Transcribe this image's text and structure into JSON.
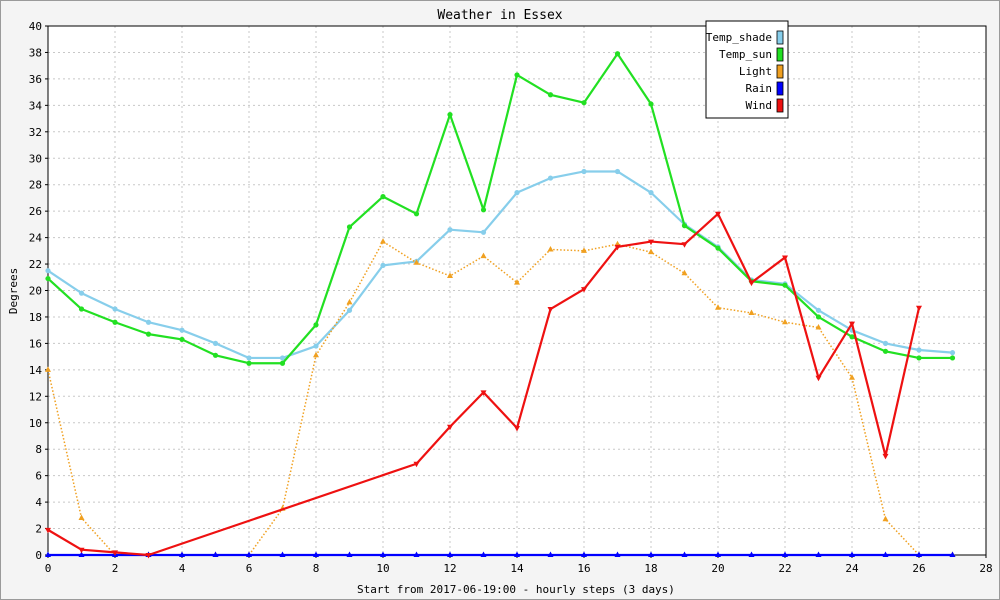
{
  "chart_data": {
    "type": "line",
    "title": "Weather in Essex",
    "xlabel": "Start from 2017-06-19:00 - hourly steps (3 days)",
    "ylabel": "Degrees",
    "xlim": [
      0,
      28
    ],
    "ylim": [
      0,
      40
    ],
    "xticks": [
      "0",
      "2",
      "4",
      "6",
      "8",
      "10",
      "12",
      "14",
      "16",
      "18",
      "20",
      "22",
      "24",
      "26",
      "28"
    ],
    "yticks": [
      "0",
      "2",
      "4",
      "6",
      "8",
      "10",
      "12",
      "14",
      "16",
      "18",
      "20",
      "22",
      "24",
      "26",
      "28",
      "30",
      "32",
      "34",
      "36",
      "38",
      "40"
    ],
    "grid": true,
    "legend_position": "top-right",
    "series": [
      {
        "name": "Temp_shade",
        "color": "#87ceeb",
        "style": "solid",
        "marker": "circle",
        "x": [
          0,
          1,
          2,
          3,
          4,
          5,
          6,
          7,
          8,
          9,
          10,
          11,
          12,
          13,
          14,
          15,
          16,
          17,
          18,
          19,
          20,
          21,
          22,
          23,
          24,
          25,
          26,
          27
        ],
        "values": [
          21.5,
          19.8,
          18.6,
          17.6,
          17.0,
          16.0,
          14.9,
          14.9,
          15.8,
          18.5,
          21.9,
          22.2,
          24.6,
          24.4,
          27.4,
          28.5,
          29.0,
          29.0,
          27.4,
          25.0,
          23.3,
          20.8,
          20.5,
          18.5,
          17.0,
          16.0,
          15.5,
          15.3
        ]
      },
      {
        "name": "Temp_sun",
        "color": "#22e022",
        "style": "solid",
        "marker": "circle",
        "x": [
          0,
          1,
          2,
          3,
          4,
          5,
          6,
          7,
          8,
          9,
          10,
          11,
          12,
          13,
          14,
          15,
          16,
          17,
          18,
          19,
          20,
          21,
          22,
          23,
          24,
          25,
          26,
          27
        ],
        "values": [
          20.9,
          18.6,
          17.6,
          16.7,
          16.3,
          15.1,
          14.5,
          14.5,
          17.4,
          24.8,
          27.1,
          25.8,
          33.3,
          26.1,
          36.3,
          34.8,
          34.2,
          37.9,
          34.1,
          24.9,
          23.2,
          20.7,
          20.4,
          18.0,
          16.5,
          15.4,
          14.9,
          14.9
        ]
      },
      {
        "name": "Light",
        "color": "#f0a020",
        "style": "dotted",
        "marker": "triangle-up",
        "x": [
          0,
          1,
          2,
          3,
          4,
          5,
          6,
          7,
          8,
          9,
          10,
          11,
          12,
          13,
          14,
          15,
          16,
          17,
          18,
          19,
          20,
          21,
          22,
          23,
          24,
          25,
          26,
          27
        ],
        "values": [
          14.0,
          2.8,
          0,
          0,
          0,
          0,
          0,
          3.5,
          15.1,
          19.1,
          23.7,
          22.1,
          21.1,
          22.6,
          20.6,
          23.1,
          23.0,
          23.5,
          22.9,
          21.3,
          18.7,
          18.3,
          17.6,
          17.2,
          13.4,
          2.7,
          0,
          0
        ]
      },
      {
        "name": "Rain",
        "color": "#0000ff",
        "style": "solid",
        "marker": "triangle-up",
        "x": [
          0,
          1,
          2,
          3,
          4,
          5,
          6,
          7,
          8,
          9,
          10,
          11,
          12,
          13,
          14,
          15,
          16,
          17,
          18,
          19,
          20,
          21,
          22,
          23,
          24,
          25,
          26,
          27
        ],
        "values": [
          0,
          0,
          0,
          0,
          0,
          0,
          0,
          0,
          0,
          0,
          0,
          0,
          0,
          0,
          0,
          0,
          0,
          0,
          0,
          0,
          0,
          0,
          0,
          0,
          0,
          0,
          0,
          0
        ]
      },
      {
        "name": "Wind",
        "color": "#ee1111",
        "style": "solid",
        "marker": "triangle-down",
        "x": [
          0,
          1,
          2,
          3,
          11,
          12,
          13,
          14,
          15,
          16,
          17,
          18,
          19,
          20,
          21,
          22,
          23,
          24,
          25,
          26
        ],
        "values": [
          1.9,
          0.4,
          0.2,
          0.0,
          6.9,
          9.7,
          12.3,
          9.6,
          18.6,
          20.1,
          23.3,
          23.7,
          23.5,
          25.8,
          20.6,
          22.5,
          13.4,
          17.5,
          7.5,
          18.7
        ]
      }
    ]
  }
}
